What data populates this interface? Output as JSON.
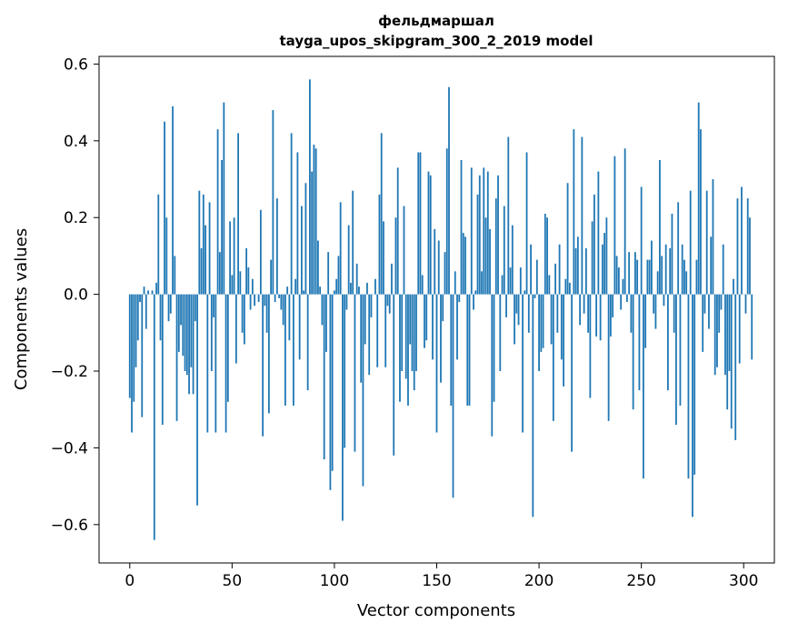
{
  "chart_data": {
    "type": "bar",
    "title_line1": "фельдмаршал",
    "title_line2": "tayga_upos_skipgram_300_2_2019 model",
    "xlabel": "Vector components",
    "ylabel": "Components values",
    "xlim": [
      -15,
      315
    ],
    "ylim": [
      -0.7,
      0.62
    ],
    "xticks": [
      0,
      50,
      100,
      150,
      200,
      250,
      300
    ],
    "xtick_labels": [
      "0",
      "50",
      "100",
      "150",
      "200",
      "250",
      "300"
    ],
    "yticks": [
      -0.6,
      -0.4,
      -0.2,
      0.0,
      0.2,
      0.4,
      0.6
    ],
    "ytick_labels": [
      "−0.6",
      "−0.4",
      "−0.2",
      "0.0",
      "0.2",
      "0.4",
      "0.6"
    ],
    "bar_color": "#1f77b4",
    "grid": false,
    "values": [
      -0.27,
      -0.36,
      -0.28,
      -0.19,
      -0.12,
      -0.02,
      -0.32,
      0.02,
      -0.09,
      0.01,
      0.0,
      0.01,
      -0.64,
      0.03,
      0.26,
      -0.12,
      -0.34,
      0.45,
      0.2,
      -0.07,
      -0.05,
      0.49,
      0.1,
      -0.33,
      -0.15,
      -0.08,
      -0.16,
      -0.2,
      -0.21,
      -0.26,
      -0.19,
      -0.26,
      -0.07,
      -0.55,
      0.27,
      0.12,
      0.26,
      0.18,
      -0.36,
      0.24,
      -0.2,
      -0.06,
      -0.36,
      0.43,
      0.11,
      0.35,
      0.5,
      -0.36,
      -0.28,
      0.19,
      0.05,
      0.2,
      -0.18,
      0.42,
      0.06,
      -0.1,
      -0.13,
      0.12,
      0.07,
      -0.04,
      0.04,
      -0.03,
      0.0,
      -0.02,
      0.22,
      -0.37,
      -0.03,
      -0.1,
      -0.31,
      0.09,
      0.48,
      -0.02,
      0.25,
      -0.01,
      -0.04,
      -0.08,
      -0.29,
      0.02,
      -0.12,
      0.42,
      -0.29,
      0.04,
      0.37,
      -0.17,
      0.23,
      0.01,
      0.29,
      -0.25,
      0.56,
      0.32,
      0.39,
      0.38,
      0.14,
      0.02,
      -0.08,
      -0.43,
      -0.15,
      0.11,
      -0.51,
      -0.46,
      0.01,
      0.04,
      0.1,
      0.24,
      -0.59,
      -0.4,
      -0.04,
      0.18,
      0.03,
      0.27,
      -0.41,
      0.08,
      0.02,
      -0.23,
      -0.5,
      -0.13,
      0.03,
      -0.21,
      -0.06,
      0.0,
      0.04,
      -0.19,
      0.26,
      0.42,
      0.19,
      -0.19,
      -0.03,
      -0.05,
      0.08,
      -0.42,
      0.2,
      0.33,
      -0.28,
      -0.2,
      0.23,
      -0.22,
      -0.29,
      -0.13,
      -0.2,
      -0.25,
      -0.2,
      0.37,
      0.37,
      0.05,
      -0.14,
      -0.12,
      0.32,
      0.31,
      -0.17,
      0.17,
      -0.36,
      0.14,
      -0.23,
      -0.07,
      0.11,
      0.38,
      0.54,
      -0.29,
      -0.53,
      0.06,
      -0.17,
      -0.02,
      0.35,
      0.16,
      0.15,
      -0.29,
      -0.29,
      0.33,
      -0.04,
      0.01,
      0.26,
      0.31,
      0.06,
      0.33,
      0.2,
      0.32,
      0.17,
      -0.37,
      -0.28,
      0.25,
      0.31,
      -0.2,
      0.05,
      0.23,
      -0.06,
      0.41,
      0.07,
      0.18,
      -0.13,
      -0.05,
      -0.08,
      0.07,
      -0.36,
      0.01,
      0.37,
      -0.1,
      0.13,
      -0.58,
      -0.01,
      0.09,
      -0.2,
      -0.15,
      -0.14,
      0.21,
      0.2,
      0.05,
      -0.13,
      -0.33,
      0.08,
      -0.1,
      0.13,
      -0.17,
      -0.24,
      0.04,
      0.29,
      0.03,
      -0.41,
      0.43,
      0.12,
      0.15,
      -0.08,
      0.41,
      -0.05,
      0.12,
      -0.1,
      -0.27,
      0.19,
      0.26,
      -0.11,
      0.32,
      -0.12,
      0.13,
      0.16,
      0.2,
      -0.33,
      -0.11,
      -0.06,
      0.36,
      0.1,
      0.07,
      -0.04,
      0.04,
      0.38,
      -0.02,
      0.11,
      -0.1,
      -0.3,
      0.11,
      0.09,
      -0.25,
      0.28,
      -0.48,
      -0.14,
      0.09,
      0.09,
      0.14,
      -0.05,
      -0.09,
      0.06,
      0.35,
      0.1,
      -0.03,
      0.13,
      -0.25,
      0.12,
      0.21,
      -0.1,
      -0.34,
      0.24,
      -0.29,
      0.13,
      0.09,
      0.06,
      -0.48,
      0.27,
      -0.58,
      -0.47,
      0.09,
      0.5,
      0.43,
      -0.15,
      -0.05,
      0.27,
      -0.09,
      0.15,
      0.3,
      -0.21,
      -0.19,
      -0.1,
      -0.04,
      0.13,
      -0.21,
      -0.3,
      -0.2,
      -0.35,
      0.04,
      -0.38,
      0.25,
      -0.18,
      0.28,
      0.0,
      -0.05,
      0.25,
      0.2,
      -0.17
    ]
  }
}
